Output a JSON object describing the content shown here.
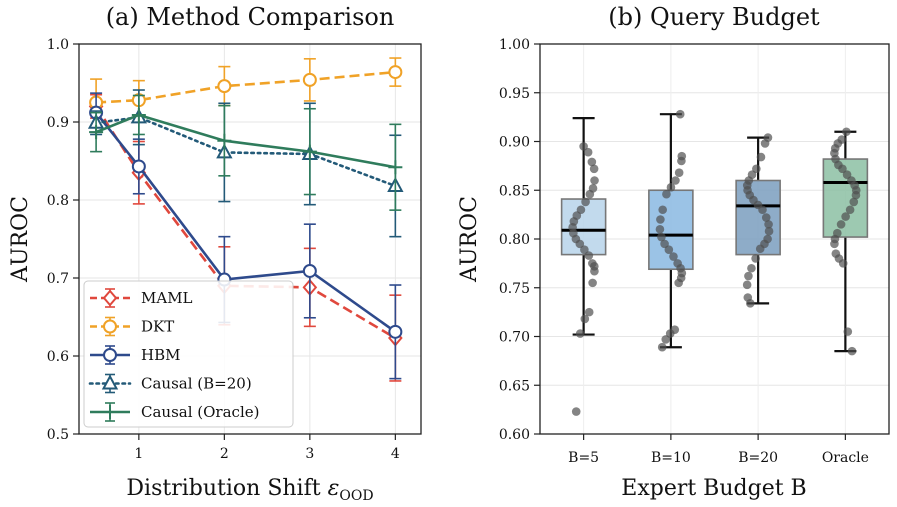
{
  "chart_data": [
    {
      "type": "line",
      "title": "(a) Method Comparison",
      "xlabel": "Distribution Shift ",
      "xlabel_symbol": "ε",
      "xlabel_subscript": "OOD",
      "ylabel": "AUROC",
      "xlim": [
        0.3,
        4.3
      ],
      "ylim": [
        0.5,
        1.0
      ],
      "xticks": [
        1,
        2,
        3,
        4
      ],
      "xtick_labels": [
        "1",
        "2",
        "3",
        "4"
      ],
      "yticks": [
        0.5,
        0.6,
        0.7,
        0.8,
        0.9,
        1.0
      ],
      "ytick_labels": [
        "0.5",
        "0.6",
        "0.7",
        "0.8",
        "0.9",
        "1.0"
      ],
      "grid": true,
      "legend_position": "bottom-left",
      "series": [
        {
          "name": "MAML",
          "color": "#e0483d",
          "style": "dashed",
          "marker": "diamond",
          "x": [
            0.5,
            1,
            2,
            3,
            4
          ],
          "y": [
            0.92,
            0.835,
            0.69,
            0.688,
            0.623
          ],
          "err": [
            0.015,
            0.04,
            0.05,
            0.05,
            0.055
          ]
        },
        {
          "name": "DKT",
          "color": "#f0a227",
          "style": "dashed",
          "marker": "circle",
          "x": [
            0.5,
            1,
            2,
            3,
            4
          ],
          "y": [
            0.925,
            0.928,
            0.946,
            0.954,
            0.964
          ],
          "err": [
            0.03,
            0.025,
            0.025,
            0.027,
            0.018
          ]
        },
        {
          "name": "HBM",
          "color": "#2e4a8c",
          "style": "solid",
          "marker": "circle",
          "x": [
            0.5,
            1,
            2,
            3,
            4
          ],
          "y": [
            0.912,
            0.843,
            0.698,
            0.709,
            0.631
          ],
          "err": [
            0.025,
            0.035,
            0.055,
            0.06,
            0.06
          ]
        },
        {
          "name": "Causal (B=20)",
          "color": "#235a78",
          "style": "dotted",
          "marker": "triangle",
          "x": [
            0.5,
            1,
            2,
            3,
            4
          ],
          "y": [
            0.899,
            0.906,
            0.861,
            0.859,
            0.818
          ],
          "err": [
            0.015,
            0.035,
            0.063,
            0.065,
            0.065
          ]
        },
        {
          "name": "Causal (Oracle)",
          "color": "#2f7c5c",
          "style": "solid",
          "marker": "plus",
          "x": [
            0.5,
            1,
            2,
            3,
            4
          ],
          "y": [
            0.887,
            0.909,
            0.876,
            0.862,
            0.842
          ],
          "err": [
            0.025,
            0.025,
            0.045,
            0.055,
            0.055
          ]
        }
      ]
    },
    {
      "type": "box",
      "title": "(b) Query Budget",
      "xlabel": "Expert Budget B",
      "ylabel": "AUROC",
      "ylim": [
        0.6,
        1.0
      ],
      "yticks": [
        0.6,
        0.65,
        0.7,
        0.75,
        0.8,
        0.85,
        0.9,
        0.95,
        1.0
      ],
      "ytick_labels": [
        "0.60",
        "0.65",
        "0.70",
        "0.75",
        "0.80",
        "0.85",
        "0.90",
        "0.95",
        "1.00"
      ],
      "categories": [
        "B=5",
        "B=10",
        "B=20",
        "Oracle"
      ],
      "colors": [
        "#b7d3ea",
        "#8ab9e2",
        "#7a9dbe",
        "#8cc0a3"
      ],
      "boxes": [
        {
          "q1": 0.784,
          "median": 0.809,
          "q3": 0.841,
          "whisker_low": 0.702,
          "whisker_high": 0.924,
          "points": [
            0.895,
            0.889,
            0.879,
            0.872,
            0.86,
            0.852,
            0.846,
            0.838,
            0.83,
            0.824,
            0.818,
            0.812,
            0.806,
            0.8,
            0.795,
            0.789,
            0.783,
            0.775,
            0.772,
            0.767,
            0.755,
            0.725,
            0.718,
            0.703,
            0.623
          ]
        },
        {
          "q1": 0.769,
          "median": 0.804,
          "q3": 0.85,
          "whisker_low": 0.689,
          "whisker_high": 0.928,
          "points": [
            0.928,
            0.885,
            0.88,
            0.868,
            0.86,
            0.853,
            0.846,
            0.83,
            0.82,
            0.81,
            0.802,
            0.795,
            0.789,
            0.782,
            0.775,
            0.77,
            0.765,
            0.76,
            0.755,
            0.707,
            0.703,
            0.697,
            0.689
          ]
        },
        {
          "q1": 0.784,
          "median": 0.834,
          "q3": 0.86,
          "whisker_low": 0.734,
          "whisker_high": 0.904,
          "points": [
            0.904,
            0.898,
            0.884,
            0.872,
            0.866,
            0.86,
            0.855,
            0.85,
            0.845,
            0.84,
            0.835,
            0.83,
            0.822,
            0.815,
            0.808,
            0.8,
            0.795,
            0.79,
            0.78,
            0.77,
            0.762,
            0.753,
            0.74,
            0.734
          ]
        },
        {
          "q1": 0.802,
          "median": 0.858,
          "q3": 0.882,
          "whisker_low": 0.685,
          "whisker_high": 0.91,
          "points": [
            0.91,
            0.902,
            0.898,
            0.893,
            0.888,
            0.882,
            0.876,
            0.872,
            0.866,
            0.86,
            0.855,
            0.85,
            0.845,
            0.838,
            0.83,
            0.823,
            0.815,
            0.806,
            0.8,
            0.795,
            0.785,
            0.78,
            0.775,
            0.705,
            0.685
          ]
        }
      ]
    }
  ]
}
